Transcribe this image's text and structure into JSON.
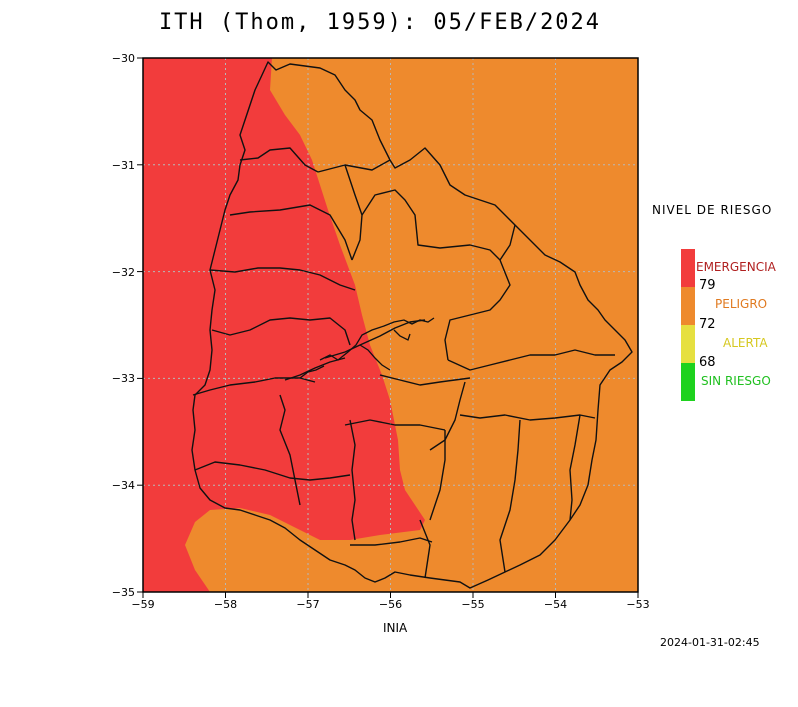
{
  "title": "ITH (Thom, 1959): 05/FEB/2024",
  "map": {
    "lon_range": [
      -59,
      -53
    ],
    "lat_range": [
      -35,
      -30
    ],
    "x_ticks": [
      "−59",
      "−58",
      "−57",
      "−56",
      "−55",
      "−54",
      "−53"
    ],
    "y_ticks": [
      "−30",
      "−31",
      "−32",
      "−33",
      "−34",
      "−35"
    ],
    "grid": "dotted",
    "colors": {
      "emergencia": "#f23c3c",
      "peligro": "#ee8a2d",
      "alerta": "#e6e040",
      "sin_riesgo": "#1ed21e"
    }
  },
  "legend": {
    "title": "NIVEL DE RIESGO",
    "levels": [
      {
        "label": "EMERGENCIA",
        "color": "#f23c3c",
        "text_color": "#b02020"
      },
      {
        "label": "PELIGRO",
        "color": "#ee8a2d",
        "text_color": "#e07a20"
      },
      {
        "label": "ALERTA",
        "color": "#e6e040",
        "text_color": "#d6c820"
      },
      {
        "label": "SIN RIESGO",
        "color": "#1ed21e",
        "text_color": "#20c020"
      }
    ],
    "thresholds": [
      "79",
      "72",
      "68"
    ]
  },
  "source": "INIA",
  "timestamp": "2024-01-31-02:45"
}
